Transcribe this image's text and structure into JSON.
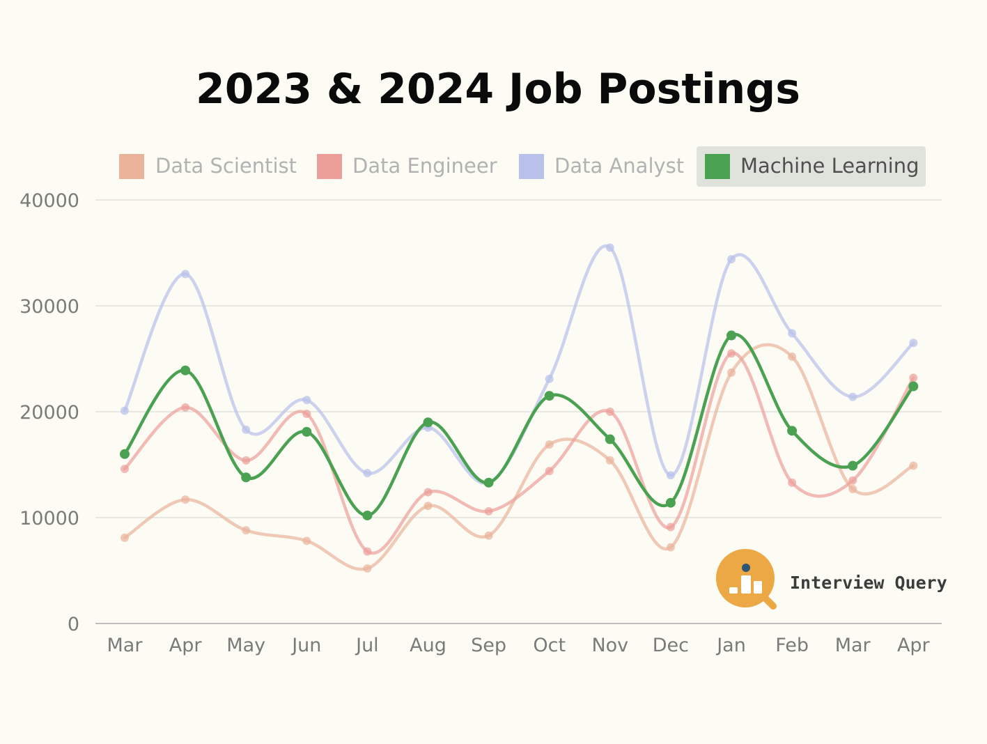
{
  "chart_data": {
    "type": "line",
    "title": "2023 & 2024 Job Postings",
    "categories": [
      "Mar",
      "Apr",
      "May",
      "Jun",
      "Jul",
      "Aug",
      "Sep",
      "Oct",
      "Nov",
      "Dec",
      "Jan",
      "Feb",
      "Mar",
      "Apr"
    ],
    "ylim": [
      0,
      40000
    ],
    "yticks": [
      "0",
      "10000",
      "20000",
      "30000",
      "40000"
    ],
    "grid": "horizontal",
    "legend_position": "top",
    "series": [
      {
        "name": "Data Scientist",
        "color": "#eab39a",
        "values": [
          8100,
          11700,
          8800,
          7800,
          5200,
          11100,
          8300,
          16900,
          15400,
          7200,
          23700,
          25200,
          12700,
          14900
        ]
      },
      {
        "name": "Data Engineer",
        "color": "#ec9e98",
        "values": [
          14600,
          20400,
          15400,
          19800,
          6800,
          12400,
          10600,
          14400,
          20000,
          9100,
          25500,
          13300,
          13500,
          23200
        ]
      },
      {
        "name": "Data Analyst",
        "color": "#b8c1ea",
        "values": [
          20100,
          33000,
          18300,
          21100,
          14200,
          18500,
          13300,
          23100,
          35500,
          14000,
          34400,
          27400,
          21400,
          26500
        ]
      },
      {
        "name": "Machine Learning",
        "color": "#4aa151",
        "values": [
          16000,
          23900,
          13800,
          18100,
          10200,
          19000,
          13300,
          21500,
          17400,
          11400,
          27200,
          18200,
          14900,
          22400
        ],
        "highlighted": true
      }
    ]
  },
  "brand": {
    "name": "Interview Query"
  }
}
